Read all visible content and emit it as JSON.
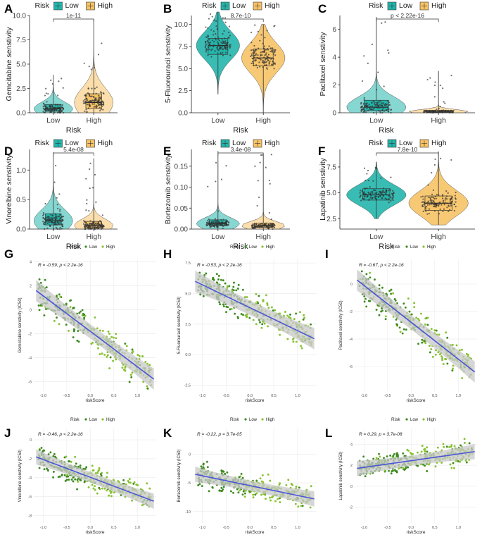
{
  "figure": {
    "panels_top": [
      {
        "letter": "A",
        "ylabel": "Gemcitabine senstivity",
        "ticks": [
          "0.0",
          "2.5",
          "5.0",
          "7.5",
          "10.0"
        ],
        "pvalue": "1e-11",
        "style": "box"
      },
      {
        "letter": "B",
        "ylabel": "5-Fluorouracil senstivity",
        "ticks": [
          "0.0",
          "2.5",
          "5.0",
          "7.5",
          "10.0"
        ],
        "pvalue": "8.7e-10",
        "style": "violin"
      },
      {
        "letter": "C",
        "ylabel": "Paclitaxel senstivity",
        "ticks": [
          "0",
          "2",
          "4",
          "6"
        ],
        "pvalue": "p < 2.22e-16",
        "style": "box"
      },
      {
        "letter": "D",
        "ylabel": "Vinorelbine senstivity",
        "ticks": [
          "0.0",
          "0.5",
          "1.0"
        ],
        "pvalue": "5.4e-08",
        "style": "box"
      },
      {
        "letter": "E",
        "ylabel": "Bortezomib senstivity",
        "ticks": [
          "0.00",
          "0.05",
          "0.10",
          "0.15"
        ],
        "pvalue": "3.4e-08",
        "style": "box"
      },
      {
        "letter": "F",
        "ylabel": "Lapatinib senstivity",
        "ticks": [
          "2.5",
          "5.0",
          "7.5"
        ],
        "pvalue": "7.8e-10",
        "style": "violin"
      }
    ],
    "panels_bottom": [
      {
        "letter": "G",
        "ylabel": "Gemcitabine senstivity (IC50)",
        "ticks": [
          "4",
          "2",
          "0",
          "-2",
          "-4",
          "-6"
        ],
        "annotation": "R = -0.59, p < 2.2e-16"
      },
      {
        "letter": "H",
        "ylabel": "5-Fluorouracil senstivity (IC50)",
        "ticks": [
          "7.5",
          "5.0",
          "2.5",
          "0.0",
          "-2.5"
        ],
        "annotation": "R = -0.53, p < 2.2e-16"
      },
      {
        "letter": "I",
        "ylabel": "Paclitaxel senstivity (IC50)",
        "ticks": [
          "0",
          "-2",
          "-4",
          "-6"
        ],
        "annotation": "R = -0.67, p < 2.2e-16"
      },
      {
        "letter": "J",
        "ylabel": "Vinorelbine senstivity (IC50)",
        "ticks": [
          "0",
          "-2",
          "-4",
          "-6",
          "-8"
        ],
        "annotation": "R = -0.46, p < 2.2e-16"
      },
      {
        "letter": "K",
        "ylabel": "Bortezomib senstivity (IC50)",
        "ticks": [
          "0",
          "-5",
          "-10"
        ],
        "annotation": "R = -0.22, p = 3.7e-05"
      },
      {
        "letter": "L",
        "ylabel": "Lapatinib senstivity (IC50)",
        "ticks": [
          "4",
          "2",
          "0",
          "-2"
        ],
        "annotation": "R = 0.29, p = 3.7e-08"
      }
    ],
    "legend_title": "Risk",
    "legend_low": "Low",
    "legend_high": "High",
    "group_xlabel": "Risk",
    "scatter_xlabel": "riskScore",
    "scatter_xticks": [
      "-1.0",
      "-0.5",
      "0.0",
      "0.5",
      "1.0"
    ],
    "colors": {
      "low": "#23b5ab",
      "high": "#f7c366",
      "scatter_low": "#3e8a22",
      "scatter_high": "#88c232",
      "fit": "#4a55d6",
      "band": "#c8c8c8"
    }
  },
  "chart_data": [
    {
      "type": "box",
      "title": "A",
      "ylabel": "Gemcitabine senstivity",
      "xlabel": "Risk",
      "categories": [
        "Low",
        "High"
      ],
      "ylim": [
        0,
        10
      ],
      "test_p": "1e-11",
      "series": [
        {
          "name": "Low",
          "median": 0.4,
          "q1": 0.15,
          "q3": 0.85,
          "min": 0.0,
          "max": 3.9
        },
        {
          "name": "High",
          "median": 1.05,
          "q1": 0.45,
          "q3": 1.95,
          "min": 0.0,
          "max": 9.6
        }
      ]
    },
    {
      "type": "violin",
      "title": "B",
      "ylabel": "5-Fluorouracil senstivity",
      "xlabel": "Risk",
      "categories": [
        "Low",
        "High"
      ],
      "ylim": [
        0,
        11
      ],
      "test_p": "8.7e-10",
      "series": [
        {
          "name": "Low",
          "median": 7.6,
          "q1": 6.6,
          "q3": 8.4,
          "min": 2.1,
          "max": 11.4
        },
        {
          "name": "High",
          "median": 6.2,
          "q1": 5.3,
          "q3": 7.2,
          "min": 0.0,
          "max": 10.0
        }
      ]
    },
    {
      "type": "box",
      "title": "C",
      "ylabel": "Paclitaxel senstivity",
      "xlabel": "Risk",
      "categories": [
        "Low",
        "High"
      ],
      "ylim": [
        0,
        7
      ],
      "test_p": "p < 2.22e-16",
      "series": [
        {
          "name": "Low",
          "median": 0.4,
          "q1": 0.15,
          "q3": 0.9,
          "min": 0.0,
          "max": 6.9
        },
        {
          "name": "High",
          "median": 0.08,
          "q1": 0.03,
          "q3": 0.18,
          "min": 0.0,
          "max": 3.0
        }
      ]
    },
    {
      "type": "box",
      "title": "D",
      "ylabel": "Vinorelbine senstivity",
      "xlabel": "Risk",
      "categories": [
        "Low",
        "High"
      ],
      "ylim": [
        0,
        1.35
      ],
      "test_p": "5.4e-08",
      "series": [
        {
          "name": "Low",
          "median": 0.14,
          "q1": 0.07,
          "q3": 0.26,
          "min": 0.0,
          "max": 1.3
        },
        {
          "name": "High",
          "median": 0.06,
          "q1": 0.02,
          "q3": 0.13,
          "min": 0.0,
          "max": 1.2
        }
      ]
    },
    {
      "type": "box",
      "title": "E",
      "ylabel": "Bortezomib senstivity",
      "xlabel": "Risk",
      "categories": [
        "Low",
        "High"
      ],
      "ylim": [
        0,
        0.19
      ],
      "test_p": "3.4e-08",
      "series": [
        {
          "name": "Low",
          "median": 0.013,
          "q1": 0.008,
          "q3": 0.022,
          "min": 0.0,
          "max": 0.186
        },
        {
          "name": "High",
          "median": 0.008,
          "q1": 0.004,
          "q3": 0.014,
          "min": 0.0,
          "max": 0.178
        }
      ]
    },
    {
      "type": "violin",
      "title": "F",
      "ylabel": "Lapatinib senstivity",
      "xlabel": "Risk",
      "categories": [
        "Low",
        "High"
      ],
      "ylim": [
        1.5,
        9.2
      ],
      "test_p": "7.8e-10",
      "series": [
        {
          "name": "Low",
          "median": 4.8,
          "q1": 4.3,
          "q3": 5.4,
          "min": 2.5,
          "max": 8.0
        },
        {
          "name": "High",
          "median": 4.0,
          "q1": 3.3,
          "q3": 4.7,
          "min": 1.9,
          "max": 9.0
        }
      ]
    },
    {
      "type": "scatter",
      "title": "G",
      "ylabel": "Gemcitabine senstivity (IC50)",
      "xlabel": "riskScore",
      "xlim": [
        -1.2,
        1.4
      ],
      "ylim": [
        -6.8,
        4.2
      ],
      "r": -0.59,
      "p": "< 2.2e-16",
      "fit": {
        "x": [
          -1.15,
          1.35
        ],
        "y": [
          1.6,
          -5.8
        ]
      }
    },
    {
      "type": "scatter",
      "title": "H",
      "ylabel": "5-Fluorouracil senstivity (IC50)",
      "xlabel": "riskScore",
      "xlim": [
        -1.2,
        1.4
      ],
      "ylim": [
        -3.0,
        7.8
      ],
      "r": -0.53,
      "p": "< 2.2e-16",
      "fit": {
        "x": [
          -1.15,
          1.35
        ],
        "y": [
          6.0,
          1.3
        ]
      }
    },
    {
      "type": "scatter",
      "title": "I",
      "ylabel": "Paclitaxel senstivity (IC50)",
      "xlabel": "riskScore",
      "xlim": [
        -1.2,
        1.4
      ],
      "ylim": [
        -7.8,
        1.8
      ],
      "r": -0.67,
      "p": "< 2.2e-16",
      "fit": {
        "x": [
          -1.15,
          1.35
        ],
        "y": [
          0.3,
          -6.4
        ]
      }
    },
    {
      "type": "scatter",
      "title": "J",
      "ylabel": "Vinorelbine senstivity (IC50)",
      "xlabel": "riskScore",
      "xlim": [
        -1.2,
        1.4
      ],
      "ylim": [
        -8.8,
        1.2
      ],
      "r": -0.46,
      "p": "< 2.2e-16",
      "fit": {
        "x": [
          -1.15,
          1.35
        ],
        "y": [
          -1.8,
          -6.5
        ]
      }
    },
    {
      "type": "scatter",
      "title": "K",
      "ylabel": "Bortezomib senstivity (IC50)",
      "xlabel": "riskScore",
      "xlim": [
        -1.2,
        1.4
      ],
      "ylim": [
        -12,
        4.5
      ],
      "r": -0.22,
      "p": "= 3.7e-05",
      "fit": {
        "x": [
          -1.15,
          1.35
        ],
        "y": [
          -3.5,
          -7.8
        ]
      }
    },
    {
      "type": "scatter",
      "title": "L",
      "ylabel": "Lapatinib senstivity (IC50)",
      "xlabel": "riskScore",
      "xlim": [
        -1.2,
        1.4
      ],
      "ylim": [
        -3.5,
        5.5
      ],
      "r": 0.29,
      "p": "= 3.7e-08",
      "fit": {
        "x": [
          -1.15,
          1.35
        ],
        "y": [
          1.7,
          3.3
        ]
      }
    }
  ]
}
